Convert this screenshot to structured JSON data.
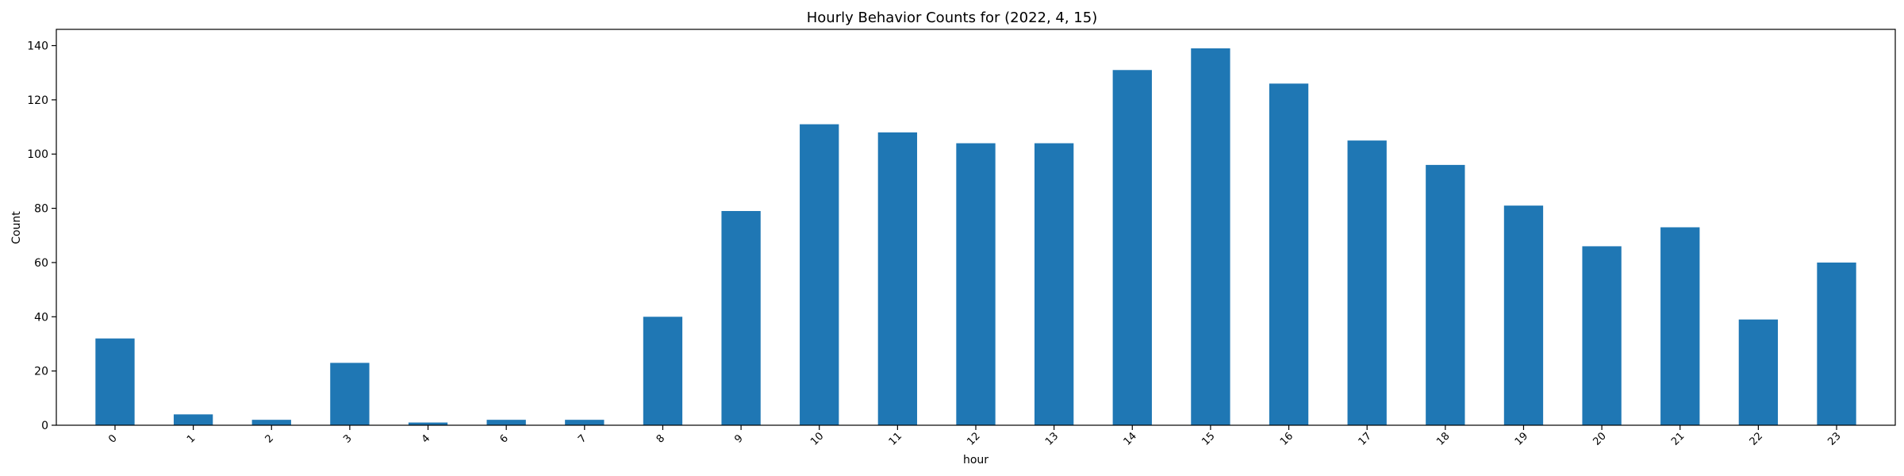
{
  "chart_data": {
    "type": "bar",
    "title": "Hourly Behavior Counts for (2022, 4, 15)",
    "xlabel": "hour",
    "ylabel": "Count",
    "categories": [
      "0",
      "1",
      "2",
      "3",
      "4",
      "6",
      "7",
      "8",
      "9",
      "10",
      "11",
      "12",
      "13",
      "14",
      "15",
      "16",
      "17",
      "18",
      "19",
      "20",
      "21",
      "22",
      "23"
    ],
    "values": [
      32,
      4,
      2,
      23,
      1,
      2,
      2,
      40,
      79,
      111,
      108,
      104,
      104,
      131,
      139,
      126,
      105,
      96,
      81,
      66,
      73,
      39,
      60
    ],
    "ylim": [
      0,
      146
    ],
    "yticks": [
      0,
      20,
      40,
      60,
      80,
      100,
      120,
      140
    ],
    "bar_color": "#1f77b4",
    "grid": false,
    "legend": "none"
  }
}
